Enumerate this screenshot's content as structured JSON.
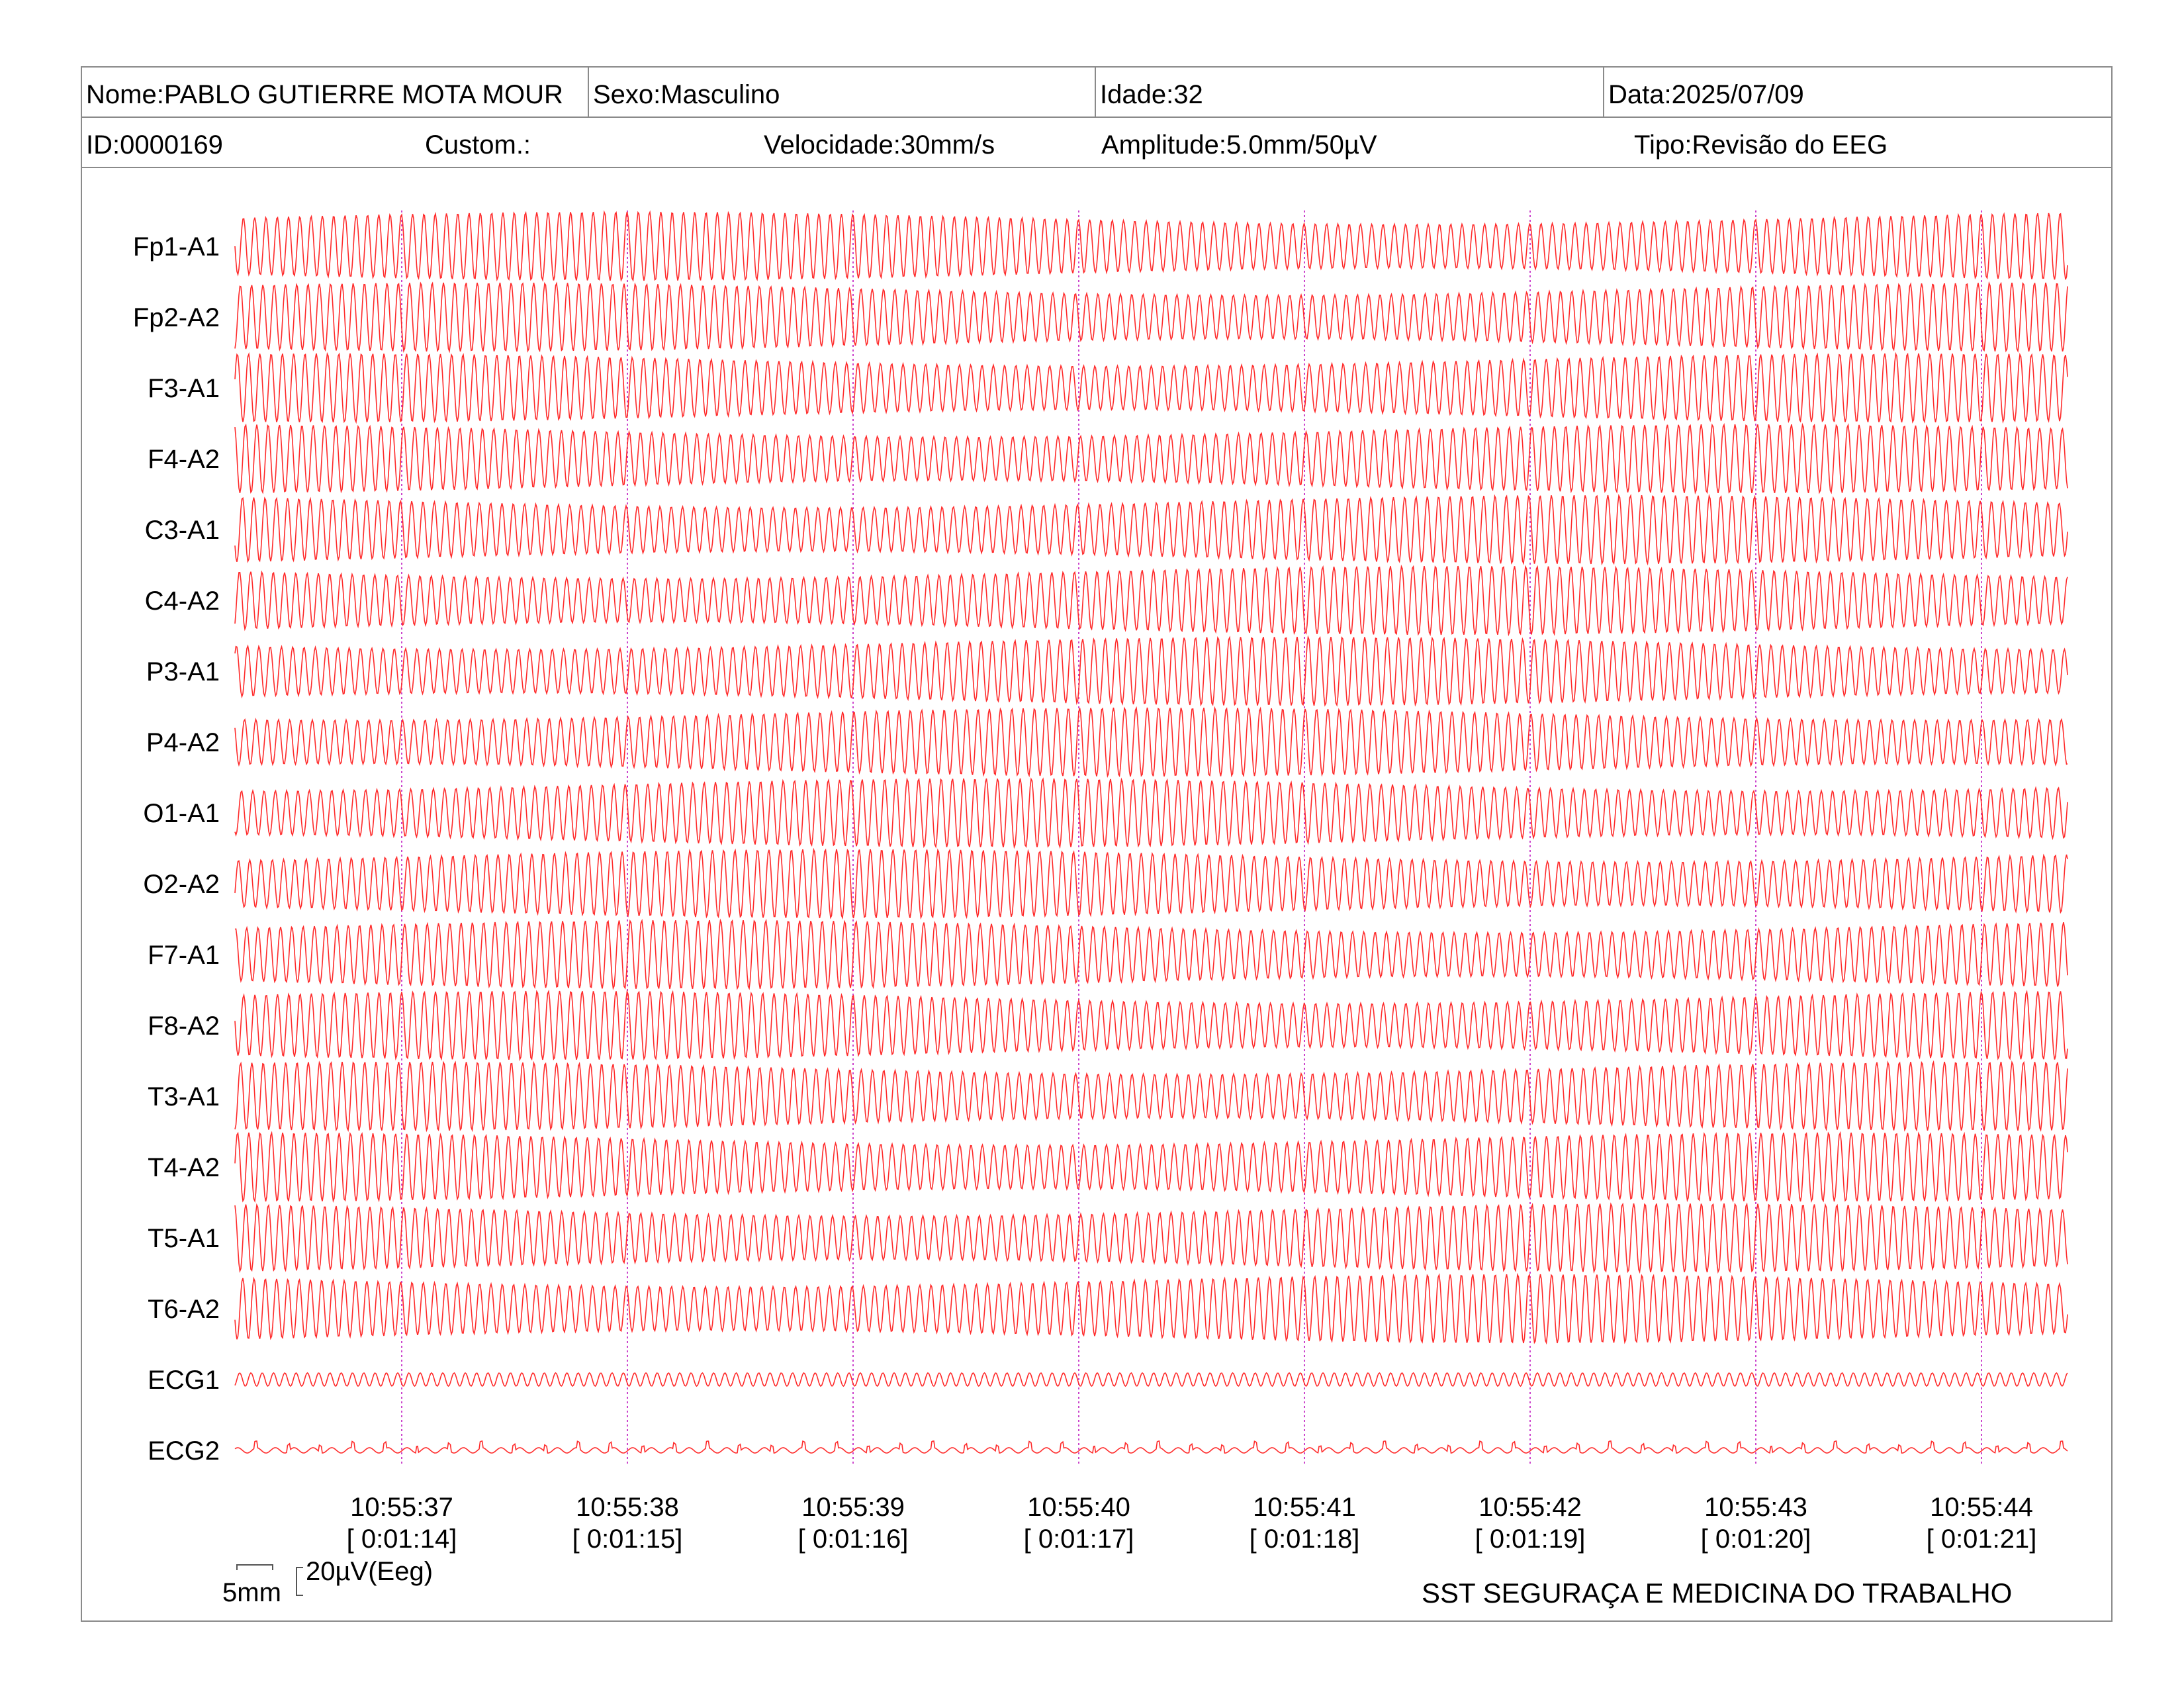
{
  "header": {
    "nome": "Nome:PABLO GUTIERRE MOTA MOUR",
    "sexo": "Sexo:Masculino",
    "idade": "Idade:32",
    "data": "Data:2025/07/09",
    "id": "ID:0000169",
    "custom": "Custom.:",
    "velocidade": "Velocidade:30mm/s",
    "amplitude": "Amplitude:5.0mm/50µV",
    "tipo": "Tipo:Revisão do EEG"
  },
  "scale": {
    "time_label": "5mm",
    "amp_label": "20µV(Eeg)"
  },
  "footer": {
    "organization": "SST SEGURAÇA E MEDICINA DO TRABALHO"
  },
  "chart_data": {
    "type": "line",
    "trace_color": "#ff2a2a",
    "marker_color": "#cc44cc",
    "channels": [
      "Fp1-A1",
      "Fp2-A2",
      "F3-A1",
      "F4-A2",
      "C3-A1",
      "C4-A2",
      "P3-A1",
      "P4-A2",
      "O1-A1",
      "O2-A2",
      "F7-A1",
      "F8-A2",
      "T3-A1",
      "T4-A2",
      "T5-A1",
      "T6-A2",
      "ECG1",
      "ECG2"
    ],
    "time_markers": [
      {
        "time": "10:55:37",
        "elapsed": "[ 0:01:14]"
      },
      {
        "time": "10:55:38",
        "elapsed": "[ 0:01:15]"
      },
      {
        "time": "10:55:39",
        "elapsed": "[ 0:01:16]"
      },
      {
        "time": "10:55:40",
        "elapsed": "[ 0:01:17]"
      },
      {
        "time": "10:55:41",
        "elapsed": "[ 0:01:18]"
      },
      {
        "time": "10:55:42",
        "elapsed": "[ 0:01:19]"
      },
      {
        "time": "10:55:43",
        "elapsed": "[ 0:01:20]"
      },
      {
        "time": "10:55:44",
        "elapsed": "[ 0:01:21]"
      }
    ]
  }
}
